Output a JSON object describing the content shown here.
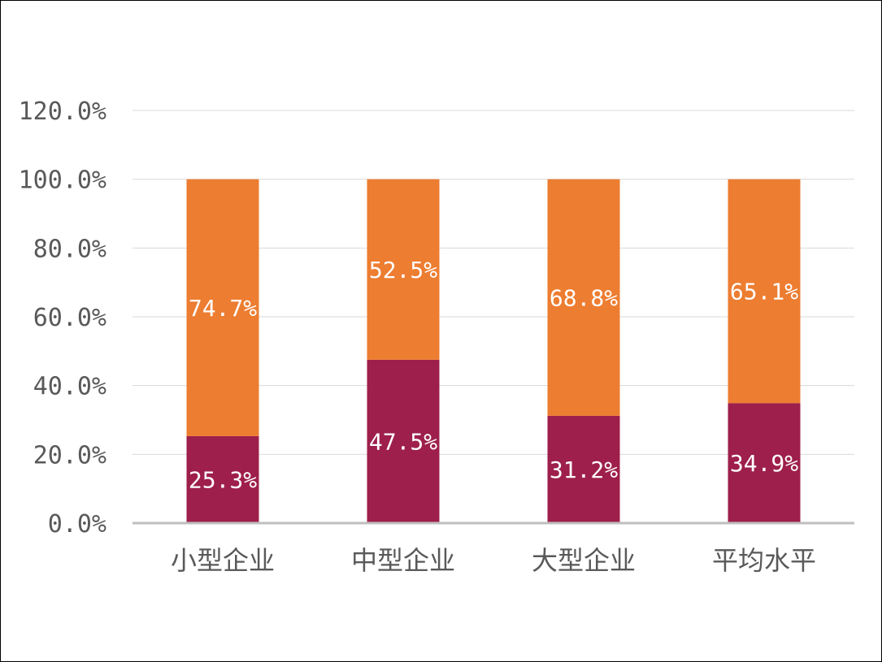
{
  "chart_data": {
    "type": "bar",
    "stacked": true,
    "categories": [
      "小型企业",
      "中型企业",
      "大型企业",
      "平均水平"
    ],
    "series": [
      {
        "values": [
          25.3,
          47.5,
          31.2,
          34.9
        ],
        "labels": [
          "25.3%",
          "47.5%",
          "31.2%",
          "34.9%"
        ],
        "color": "#9e1f4b"
      },
      {
        "values": [
          74.7,
          52.5,
          68.8,
          65.1
        ],
        "labels": [
          "74.7%",
          "52.5%",
          "68.8%",
          "65.1%"
        ],
        "color": "#ed7d31"
      }
    ],
    "ylim": [
      0,
      120
    ],
    "yticks": [
      "0.0%",
      "20.0%",
      "40.0%",
      "60.0%",
      "80.0%",
      "100.0%",
      "120.0%"
    ],
    "grid": true,
    "legend": "none",
    "axis_color": "#bfbfbf",
    "grid_color": "#d9d9d9"
  }
}
